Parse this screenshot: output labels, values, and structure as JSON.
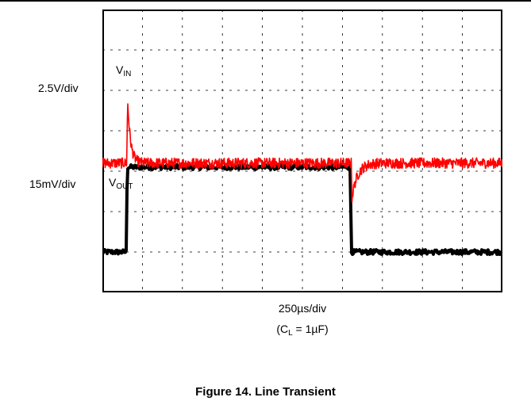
{
  "chart_data": {
    "type": "line",
    "title": "",
    "xlabel": "250µs/div",
    "xlabel_note": {
      "prefix": "(C",
      "sub": "L",
      "suffix": " = 1µF)"
    },
    "grid": true,
    "divisions": {
      "x": 10,
      "y": 7
    },
    "xlim": [
      0,
      2500
    ],
    "x_unit": "µs",
    "series": [
      {
        "name": "V_IN",
        "label_main": "V",
        "label_sub": "IN",
        "scale": "2.5V/div",
        "color": "#000000",
        "x": [
          0,
          150,
          155,
          1550,
          1555,
          2500
        ],
        "y_div": [
          1.0,
          1.0,
          3.1,
          3.1,
          1.0,
          1.0
        ],
        "noise_div": 0.06
      },
      {
        "name": "V_OUT",
        "label_main": "V",
        "label_sub": "OUT",
        "scale": "15mV/div",
        "color": "#ff0000",
        "baseline_div": 3.2,
        "events": [
          {
            "x": 158,
            "peak_div": 1.55,
            "type": "spike"
          },
          {
            "x": 1560,
            "peak_div": -0.85,
            "type": "dip"
          }
        ],
        "noise_div": 0.13
      }
    ]
  },
  "labels": {
    "vin_scale": "2.5V/div",
    "vout_scale": "15mV/div",
    "time_scale": "250µs/div",
    "cap_prefix": "(C",
    "cap_sub": "L",
    "cap_suffix": " = 1µF)",
    "vin_main": "V",
    "vin_sub": "IN",
    "vout_main": "V",
    "vout_sub": "OUT"
  },
  "caption": "Figure 14. Line Transient"
}
